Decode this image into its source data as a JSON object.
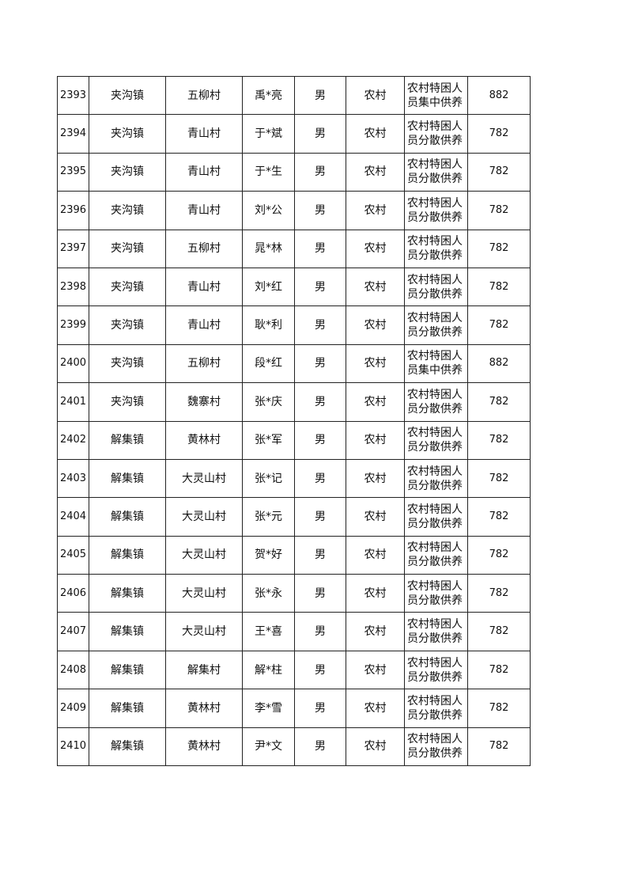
{
  "rows": [
    [
      "2393",
      "夹沟镇",
      "五柳村",
      "禹*亮",
      "男",
      "农村",
      "农村特困人员集中供养",
      "882"
    ],
    [
      "2394",
      "夹沟镇",
      "青山村",
      "于*斌",
      "男",
      "农村",
      "农村特困人员分散供养",
      "782"
    ],
    [
      "2395",
      "夹沟镇",
      "青山村",
      "于*生",
      "男",
      "农村",
      "农村特困人员分散供养",
      "782"
    ],
    [
      "2396",
      "夹沟镇",
      "青山村",
      "刘*公",
      "男",
      "农村",
      "农村特困人员分散供养",
      "782"
    ],
    [
      "2397",
      "夹沟镇",
      "五柳村",
      "晁*林",
      "男",
      "农村",
      "农村特困人员分散供养",
      "782"
    ],
    [
      "2398",
      "夹沟镇",
      "青山村",
      "刘*红",
      "男",
      "农村",
      "农村特困人员分散供养",
      "782"
    ],
    [
      "2399",
      "夹沟镇",
      "青山村",
      "耿*利",
      "男",
      "农村",
      "农村特困人员分散供养",
      "782"
    ],
    [
      "2400",
      "夹沟镇",
      "五柳村",
      "段*红",
      "男",
      "农村",
      "农村特困人员集中供养",
      "882"
    ],
    [
      "2401",
      "夹沟镇",
      "魏寨村",
      "张*庆",
      "男",
      "农村",
      "农村特困人员分散供养",
      "782"
    ],
    [
      "2402",
      "解集镇",
      "黄林村",
      "张*军",
      "男",
      "农村",
      "农村特困人员分散供养",
      "782"
    ],
    [
      "2403",
      "解集镇",
      "大灵山村",
      "张*记",
      "男",
      "农村",
      "农村特困人员分散供养",
      "782"
    ],
    [
      "2404",
      "解集镇",
      "大灵山村",
      "张*元",
      "男",
      "农村",
      "农村特困人员分散供养",
      "782"
    ],
    [
      "2405",
      "解集镇",
      "大灵山村",
      "贺*好",
      "男",
      "农村",
      "农村特困人员分散供养",
      "782"
    ],
    [
      "2406",
      "解集镇",
      "大灵山村",
      "张*永",
      "男",
      "农村",
      "农村特困人员分散供养",
      "782"
    ],
    [
      "2407",
      "解集镇",
      "大灵山村",
      "王*喜",
      "男",
      "农村",
      "农村特困人员分散供养",
      "782"
    ],
    [
      "2408",
      "解集镇",
      "解集村",
      "解*柱",
      "男",
      "农村",
      "农村特困人员分散供养",
      "782"
    ],
    [
      "2409",
      "解集镇",
      "黄林村",
      "李*雪",
      "男",
      "农村",
      "农村特困人员分散供养",
      "782"
    ],
    [
      "2410",
      "解集镇",
      "黄林村",
      "尹*文",
      "男",
      "农村",
      "农村特困人员分散供养",
      "782"
    ]
  ]
}
